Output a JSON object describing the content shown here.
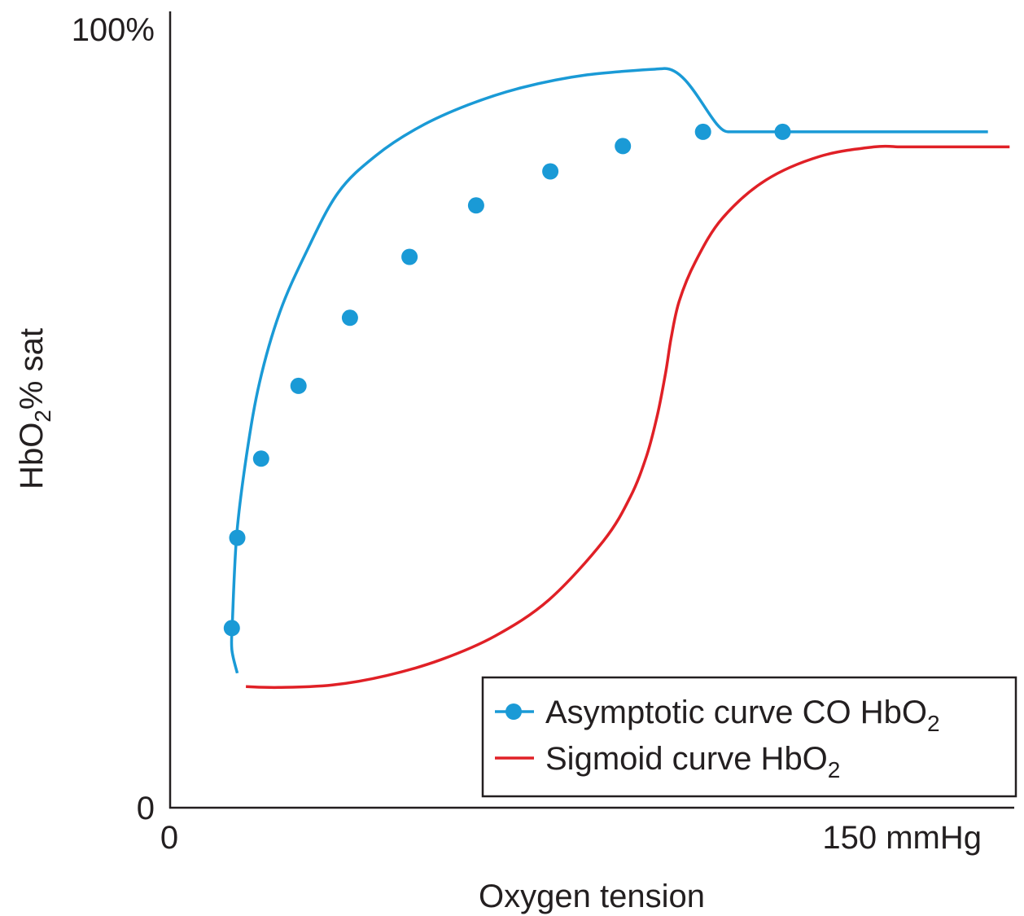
{
  "chart_data": {
    "type": "line",
    "xlabel": "Oxygen tension",
    "ylabel": {
      "base": "HbO",
      "sub": "2",
      "rest": "% sat"
    },
    "x_ticks": [
      {
        "value": 0,
        "label": "0"
      },
      {
        "value": 150,
        "label": "150 mmHg"
      }
    ],
    "y_ticks": [
      {
        "value": 0,
        "label": "0"
      },
      {
        "value": 100,
        "label": "100%"
      }
    ],
    "xlim": [
      0,
      170
    ],
    "ylim": [
      0,
      100
    ],
    "grid": false,
    "legend_position": "bottom-right",
    "series": [
      {
        "name": {
          "base": "Asymptotic curve CO HbO",
          "sub": "2"
        },
        "color": "#1a9ad6",
        "marker": "circle",
        "line_x": [
          12.4,
          11.4,
          11.5,
          12.3,
          14.1,
          16.5,
          20.2,
          25,
          31,
          38,
          46,
          55,
          65,
          77,
          91,
          106,
          122,
          151
        ],
        "line_y": [
          17,
          20,
          23.5,
          34.5,
          44.5,
          53.7,
          62.5,
          70,
          77.7,
          82.4,
          86,
          88.8,
          91,
          92.6,
          93.4,
          85.4,
          85.4,
          85.4
        ],
        "points_x": [
          11.4,
          12.4,
          16.8,
          23.7,
          33.2,
          44.2,
          56.5,
          70.2,
          83.6,
          98.4,
          113.1
        ],
        "points_y": [
          22.7,
          34.1,
          44.1,
          53.3,
          61.9,
          69.6,
          76.1,
          80.4,
          83.6,
          85.4,
          85.4
        ]
      },
      {
        "name": {
          "base": "Sigmoid curve HbO",
          "sub": "2"
        },
        "color": "#e02026",
        "marker": "none",
        "line_x": [
          14,
          20,
          30,
          40,
          50,
          60,
          70,
          80,
          85,
          88,
          90,
          91.5,
          92.5,
          94,
          97,
          102,
          110,
          120,
          130,
          135,
          140,
          145,
          155
        ],
        "line_y": [
          15.3,
          15.2,
          15.5,
          16.7,
          18.7,
          21.7,
          26.3,
          33.7,
          39.3,
          44.5,
          49.7,
          55,
          59.3,
          64,
          69,
          74.5,
          79.3,
          82.3,
          83.5,
          83.5,
          83.5,
          83.5,
          83.5
        ]
      }
    ]
  }
}
